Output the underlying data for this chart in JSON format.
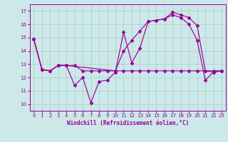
{
  "xlabel": "Windchill (Refroidissement éolien,°C)",
  "background_color": "#cce8e8",
  "grid_color": "#aacccc",
  "line_color": "#990099",
  "xlim": [
    -0.5,
    23.5
  ],
  "ylim": [
    9.5,
    17.5
  ],
  "xticks": [
    0,
    1,
    2,
    3,
    4,
    5,
    6,
    7,
    8,
    9,
    10,
    11,
    12,
    13,
    14,
    15,
    16,
    17,
    18,
    19,
    20,
    21,
    22,
    23
  ],
  "yticks": [
    10,
    11,
    12,
    13,
    14,
    15,
    16,
    17
  ],
  "curve1_x": [
    0,
    1,
    2,
    3,
    4,
    5,
    6,
    7,
    8,
    9,
    10,
    11,
    12,
    13,
    14,
    15,
    16,
    17,
    18,
    19,
    20,
    21,
    22,
    23
  ],
  "curve1_y": [
    14.9,
    12.6,
    12.5,
    12.9,
    12.9,
    11.4,
    12.0,
    10.1,
    11.7,
    11.8,
    12.4,
    15.4,
    13.1,
    14.2,
    16.2,
    16.3,
    16.4,
    16.7,
    16.5,
    16.0,
    14.8,
    11.8,
    12.4,
    12.5
  ],
  "curve2_x": [
    0,
    1,
    2,
    3,
    4,
    10,
    11,
    12,
    13,
    14,
    15,
    16,
    17,
    18,
    19,
    20,
    21,
    22,
    23
  ],
  "curve2_y": [
    14.9,
    12.6,
    12.5,
    12.9,
    12.9,
    12.5,
    14.0,
    14.8,
    15.5,
    16.2,
    16.3,
    16.4,
    16.9,
    16.7,
    16.5,
    15.9,
    12.5,
    12.4,
    12.5
  ],
  "curve3_x": [
    0,
    1,
    2,
    3,
    4,
    5,
    6,
    7,
    8,
    9,
    10,
    11,
    12,
    13,
    14,
    15,
    16,
    17,
    18,
    19,
    20,
    21,
    22,
    23
  ],
  "curve3_y": [
    14.9,
    12.6,
    12.5,
    12.9,
    12.9,
    12.9,
    12.5,
    12.5,
    12.5,
    12.5,
    12.5,
    12.5,
    12.5,
    12.5,
    12.5,
    12.5,
    12.5,
    12.5,
    12.5,
    12.5,
    12.5,
    12.5,
    12.5,
    12.5
  ]
}
